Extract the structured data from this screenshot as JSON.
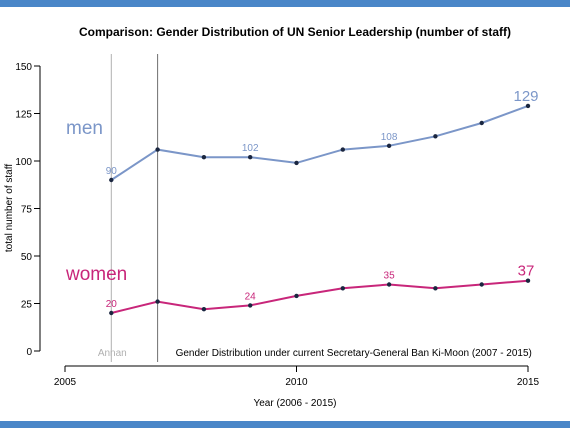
{
  "chart_data": {
    "type": "line",
    "title": "Comparison: Gender Distribution of UN Senior Leadership (number of staff)",
    "xlabel": "Year (2006 - 2015)",
    "ylabel": "total number of staff",
    "xlim": [
      2005,
      2015
    ],
    "ylim": [
      0,
      150
    ],
    "xticks": [
      2005,
      2010,
      2015
    ],
    "yticks": [
      0,
      25,
      50,
      75,
      100,
      125,
      150
    ],
    "grid": false,
    "x": [
      2006,
      2007,
      2008,
      2009,
      2010,
      2011,
      2012,
      2013,
      2014,
      2015
    ],
    "series": [
      {
        "name": "men",
        "color": "#7b96c8",
        "values": [
          90,
          106,
          102,
          102,
          99,
          106,
          108,
          113,
          120,
          129
        ],
        "labels": [
          {
            "x": 2006,
            "text": "90",
            "size": "small"
          },
          {
            "x": 2009,
            "text": "102",
            "size": "small"
          },
          {
            "x": 2012,
            "text": "108",
            "size": "small"
          },
          {
            "x": 2015,
            "text": "129",
            "size": "large"
          }
        ]
      },
      {
        "name": "women",
        "color": "#c8267a",
        "values": [
          20,
          26,
          22,
          24,
          29,
          33,
          35,
          33,
          35,
          37
        ],
        "labels": [
          {
            "x": 2006,
            "text": "20",
            "size": "small"
          },
          {
            "x": 2009,
            "text": "24",
            "size": "small"
          },
          {
            "x": 2012,
            "text": "35",
            "size": "small"
          },
          {
            "x": 2015,
            "text": "37",
            "size": "large"
          }
        ]
      }
    ],
    "reference_lines": [
      {
        "x": 2006,
        "label": "Annan",
        "color": "#b0b0b0"
      },
      {
        "x": 2007,
        "label": "Gender Distribution under current Secretary-General Ban Ki-Moon (2007 - 2015)",
        "color": "#707070"
      }
    ],
    "marker_color": "#1a2640"
  }
}
